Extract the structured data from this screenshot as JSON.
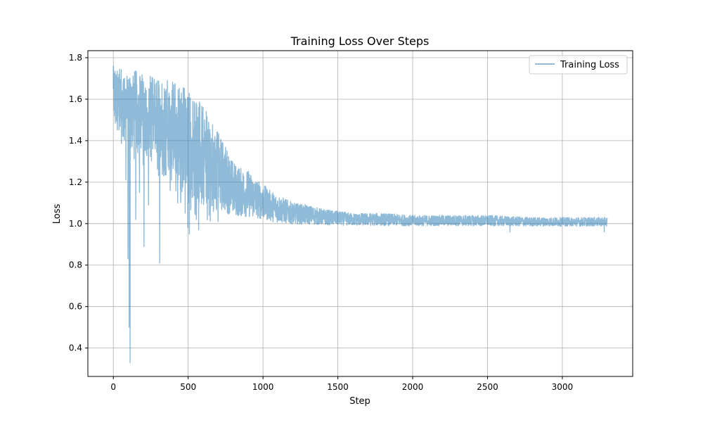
{
  "chart_data": {
    "type": "line",
    "title": "Training Loss Over Steps",
    "xlabel": "Step",
    "ylabel": "Loss",
    "xlim": [
      -170,
      3470
    ],
    "ylim": [
      0.263,
      1.834
    ],
    "xticks": [
      0,
      500,
      1000,
      1500,
      2000,
      2500,
      3000
    ],
    "yticks": [
      0.4,
      0.6,
      0.8,
      1.0,
      1.2,
      1.4,
      1.6,
      1.8
    ],
    "xtick_labels": [
      "0",
      "500",
      "1000",
      "1500",
      "2000",
      "2500",
      "3000"
    ],
    "ytick_labels": [
      "0.4",
      "0.6",
      "0.8",
      "1.0",
      "1.2",
      "1.4",
      "1.6",
      "1.8"
    ],
    "grid": true,
    "legend_position": "top-right",
    "colors": {
      "series": "#1f77b4",
      "grid": "#b0b0b0",
      "axes": "#000000"
    },
    "series": [
      {
        "name": "Training Loss",
        "alpha": 0.5,
        "envelope_upper": [
          [
            0,
            1.76
          ],
          [
            30,
            1.75
          ],
          [
            60,
            1.74
          ],
          [
            100,
            1.73
          ],
          [
            150,
            1.74
          ],
          [
            200,
            1.73
          ],
          [
            250,
            1.71
          ],
          [
            300,
            1.7
          ],
          [
            350,
            1.7
          ],
          [
            400,
            1.7
          ],
          [
            450,
            1.68
          ],
          [
            500,
            1.66
          ],
          [
            550,
            1.62
          ],
          [
            600,
            1.56
          ],
          [
            650,
            1.52
          ],
          [
            700,
            1.44
          ],
          [
            750,
            1.38
          ],
          [
            800,
            1.3
          ],
          [
            850,
            1.27
          ],
          [
            900,
            1.26
          ],
          [
            950,
            1.22
          ],
          [
            1000,
            1.19
          ],
          [
            1050,
            1.16
          ],
          [
            1100,
            1.14
          ],
          [
            1150,
            1.12
          ],
          [
            1200,
            1.1
          ],
          [
            1300,
            1.09
          ],
          [
            1400,
            1.07
          ],
          [
            1500,
            1.06
          ],
          [
            1600,
            1.05
          ],
          [
            1800,
            1.05
          ],
          [
            2000,
            1.04
          ],
          [
            2200,
            1.04
          ],
          [
            2500,
            1.04
          ],
          [
            2800,
            1.03
          ],
          [
            3100,
            1.03
          ],
          [
            3300,
            1.03
          ]
        ],
        "envelope_lower": [
          [
            0,
            1.46
          ],
          [
            30,
            1.4
          ],
          [
            60,
            1.38
          ],
          [
            100,
            1.35
          ],
          [
            150,
            1.3
          ],
          [
            200,
            1.28
          ],
          [
            250,
            1.25
          ],
          [
            300,
            1.22
          ],
          [
            350,
            1.2
          ],
          [
            400,
            1.16
          ],
          [
            450,
            1.1
          ],
          [
            500,
            1.05
          ],
          [
            550,
            1.02
          ],
          [
            600,
            1.01
          ],
          [
            650,
            1.01
          ],
          [
            700,
            1.0
          ],
          [
            800,
            0.99
          ],
          [
            900,
            0.99
          ],
          [
            1000,
            0.99
          ],
          [
            1100,
            0.98
          ],
          [
            1200,
            0.98
          ],
          [
            1300,
            0.98
          ],
          [
            1500,
            0.98
          ],
          [
            1800,
            0.98
          ],
          [
            2000,
            0.98
          ],
          [
            2500,
            0.98
          ],
          [
            3000,
            0.98
          ],
          [
            3300,
            0.98
          ]
        ],
        "spikes": [
          [
            84,
            1.21
          ],
          [
            98,
            0.83
          ],
          [
            106,
            0.5
          ],
          [
            112,
            0.33
          ],
          [
            150,
            1.02
          ],
          [
            175,
            1.15
          ],
          [
            205,
            0.89
          ],
          [
            235,
            1.09
          ],
          [
            310,
            0.81
          ],
          [
            330,
            1.27
          ],
          [
            380,
            1.16
          ],
          [
            430,
            1.1
          ],
          [
            480,
            1.05
          ],
          [
            498,
            0.98
          ],
          [
            508,
            0.95
          ],
          [
            555,
            1.02
          ],
          [
            570,
            0.97
          ],
          [
            640,
            1.04
          ],
          [
            700,
            1.01
          ],
          [
            2650,
            0.96
          ],
          [
            3280,
            0.96
          ]
        ],
        "n_steps": 3300
      }
    ]
  }
}
